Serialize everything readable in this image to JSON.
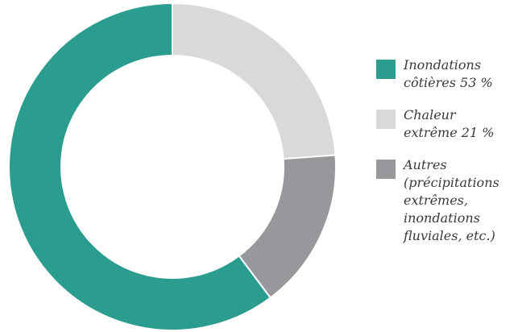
{
  "chart_data": {
    "type": "pie",
    "donut": true,
    "start_angle_deg": 0,
    "direction": "clockwise",
    "slices": [
      {
        "label": "Inondations\ncôtières 53 %",
        "value": 53,
        "color": "#2a9d8f"
      },
      {
        "label": "Chaleur\nextrême 21 %",
        "value": 21,
        "color": "#d9d9d9"
      },
      {
        "label": "Autres\n(précipitations\nextrêmes,\ninondations\nfluviales, etc.)",
        "value": 14,
        "color": "#97989b"
      }
    ],
    "legend_position": "right"
  }
}
